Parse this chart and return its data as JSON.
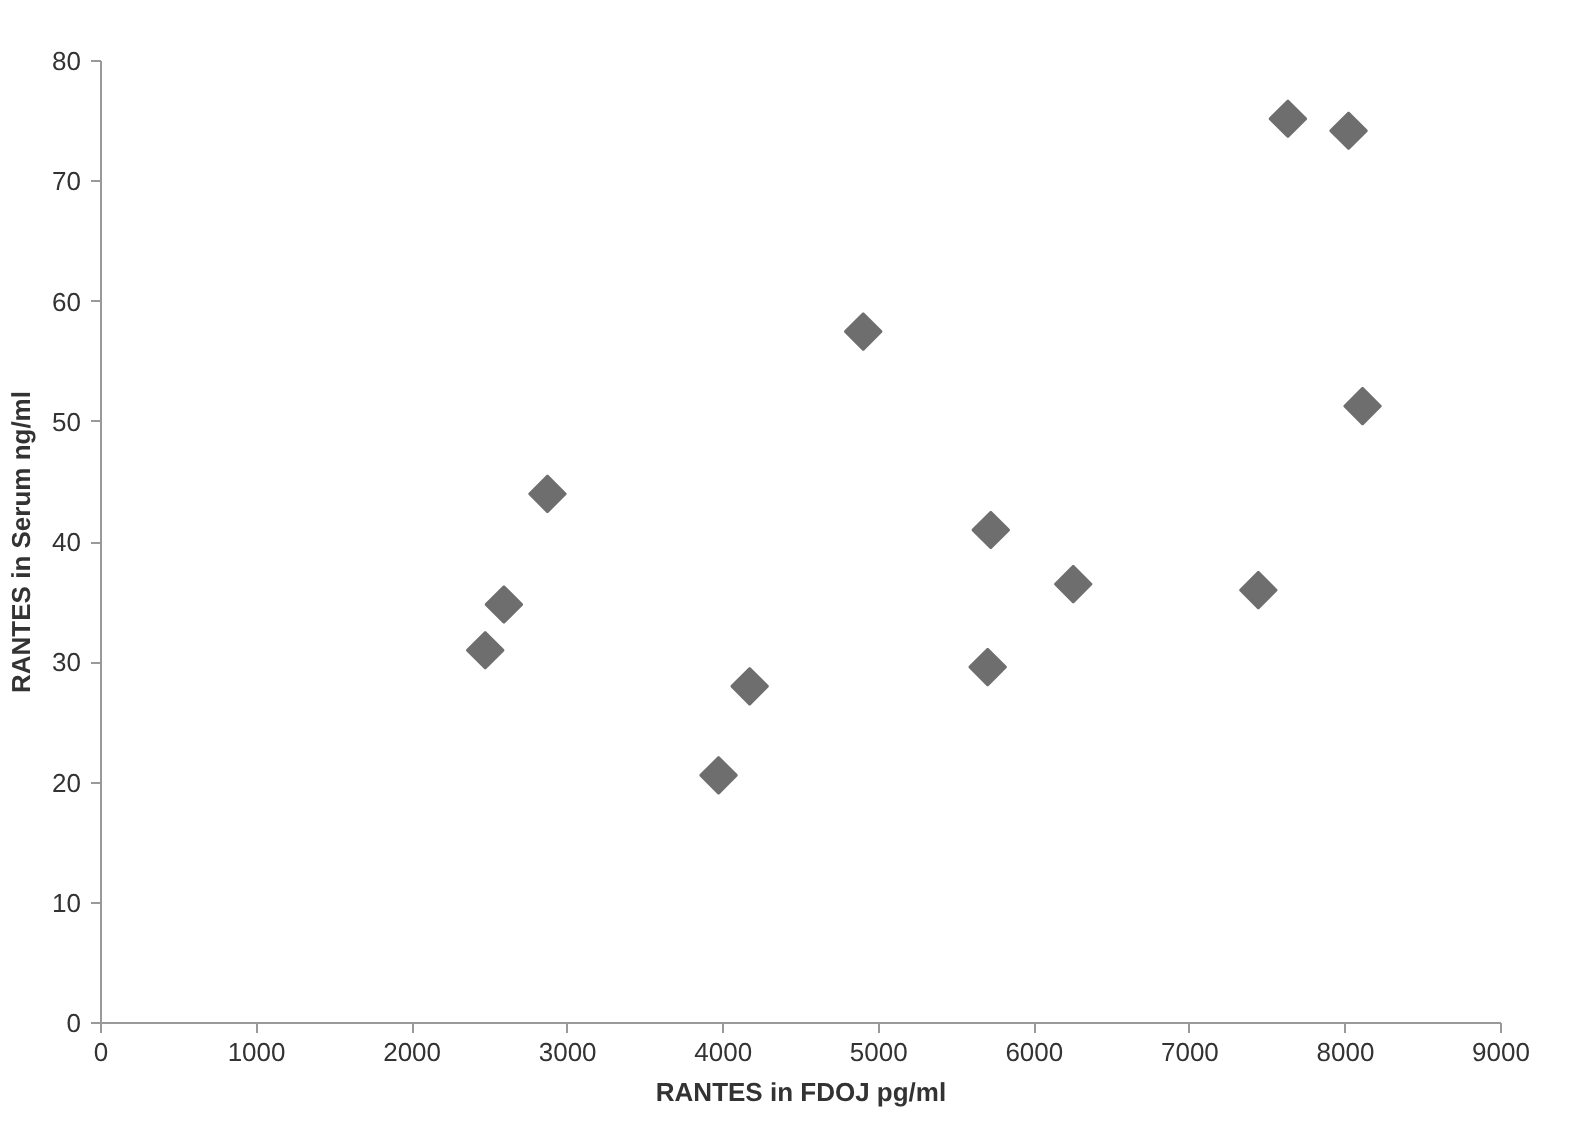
{
  "chart_data": {
    "type": "scatter",
    "xlabel": "RANTES in FDOJ pg/ml",
    "ylabel": "RANTES in Serum ng/ml",
    "x": [
      2470,
      2590,
      2870,
      3970,
      4170,
      4900,
      5700,
      5720,
      6250,
      7440,
      7630,
      8020,
      8110
    ],
    "series": [
      {
        "color": "#6e6e6e",
        "values": [
          31.0,
          34.8,
          44.0,
          20.6,
          28.0,
          57.5,
          29.6,
          41.0,
          36.5,
          36.0,
          75.2,
          74.2,
          51.3
        ]
      }
    ],
    "xlim": [
      0,
      9000
    ],
    "ylim": [
      0,
      80
    ],
    "xticks": [
      0,
      1000,
      2000,
      3000,
      4000,
      5000,
      6000,
      7000,
      8000,
      9000
    ],
    "yticks": [
      0,
      10,
      20,
      30,
      40,
      50,
      60,
      70,
      80
    ],
    "marker": "diamond",
    "grid": false
  }
}
